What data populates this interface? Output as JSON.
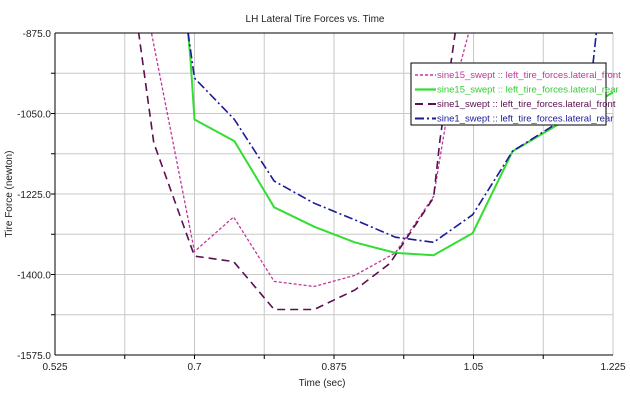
{
  "chart_data": {
    "type": "line",
    "title": "LH Lateral Tire Forces vs. Time",
    "xlabel": "Time (sec)",
    "ylabel": "Tire Force (newton)",
    "xlim": [
      0.525,
      1.225
    ],
    "ylim": [
      -1575.0,
      -875.0
    ],
    "xticks": [
      "0.525",
      "0.7",
      "0.875",
      "1.05",
      "1.225"
    ],
    "yticks": [
      "-875.0",
      "-1050.0",
      "-1225.0",
      "-1400.0",
      "-1575.0"
    ],
    "grid": true,
    "legend_position": "top-right",
    "series": [
      {
        "name": "sine15_swept :: left_tire_forces.lateral_front",
        "color": "#c0379b",
        "dash": "short-dash",
        "x": [
          0.63,
          0.646,
          0.7,
          0.749,
          0.8,
          0.85,
          0.901,
          0.952,
          1.0,
          1.018,
          1.044,
          1.06
        ],
        "y": [
          -760,
          -875,
          -1350,
          -1275,
          -1415,
          -1426,
          -1402,
          -1353,
          -1230,
          -1042,
          -875,
          -760
        ]
      },
      {
        "name": "sine15_swept :: left_tire_forces.lateral_rear",
        "color": "#33dd33",
        "dash": "solid",
        "x": [
          0.69,
          0.692,
          0.695,
          0.7,
          0.75,
          0.8,
          0.85,
          0.901,
          0.952,
          1.0,
          1.049,
          1.099,
          1.225
        ],
        "y": [
          -800,
          -875,
          -933,
          -1063,
          -1110,
          -1254,
          -1296,
          -1330,
          -1353,
          -1358,
          -1310,
          -1132,
          -1004
        ]
      },
      {
        "name": "sine1_swept :: left_tire_forces.lateral_front",
        "color": "#5a1050",
        "dash": "long-dash",
        "x": [
          0.62,
          0.63,
          0.649,
          0.7,
          0.749,
          0.8,
          0.85,
          0.901,
          0.945,
          1.0,
          1.008,
          1.027,
          1.035
        ],
        "y": [
          -760,
          -875,
          -1114,
          -1360,
          -1372,
          -1476,
          -1476,
          -1434,
          -1376,
          -1233,
          -1107,
          -875,
          -780
        ]
      },
      {
        "name": "sine1_swept :: left_tire_forces.lateral_rear",
        "color": "#1a1a9a",
        "dash": "dash-dot",
        "x": [
          0.69,
          0.692,
          0.7,
          0.75,
          0.8,
          0.85,
          0.901,
          0.952,
          1.0,
          1.049,
          1.099,
          1.165,
          1.2,
          1.204,
          1.208
        ],
        "y": [
          -800,
          -875,
          -973,
          -1063,
          -1197,
          -1245,
          -1281,
          -1319,
          -1330,
          -1270,
          -1132,
          -1060,
          -940,
          -875,
          -800
        ]
      }
    ]
  }
}
